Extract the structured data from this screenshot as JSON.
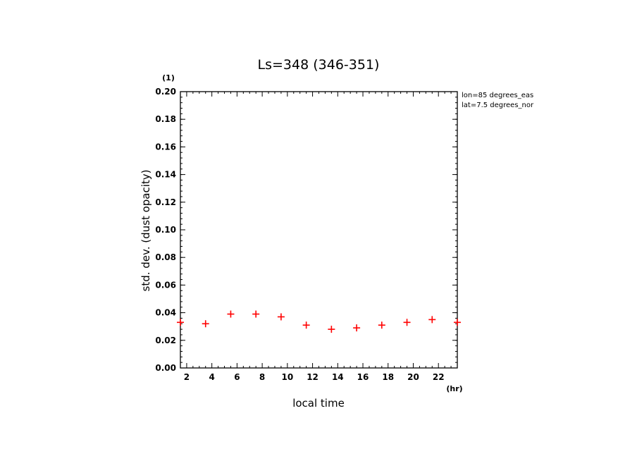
{
  "chart_data": {
    "type": "scatter",
    "title": "Ls=348 (346-351)",
    "xlabel": "local time",
    "ylabel": "std. dev. (dust opacity)",
    "x_unit": "(hr)",
    "y_unit": "(1)",
    "xlim": [
      1.5,
      23.5
    ],
    "ylim": [
      0.0,
      0.2
    ],
    "x_ticks": [
      2,
      4,
      6,
      8,
      10,
      12,
      14,
      16,
      18,
      20,
      22
    ],
    "x_tick_labels": [
      "2",
      "4",
      "6",
      "8",
      "10",
      "12",
      "14",
      "16",
      "18",
      "20",
      "22"
    ],
    "y_ticks": [
      0.0,
      0.02,
      0.04,
      0.06,
      0.08,
      0.1,
      0.12,
      0.14,
      0.16,
      0.18,
      0.2
    ],
    "y_tick_labels": [
      "0.00",
      "0.02",
      "0.04",
      "0.06",
      "0.08",
      "0.10",
      "0.12",
      "0.14",
      "0.16",
      "0.18",
      "0.20"
    ],
    "grid": false,
    "marker": "+",
    "marker_color": "#ff0000",
    "series": [
      {
        "x": [
          1.5,
          3.5,
          5.5,
          7.5,
          9.5,
          11.5,
          13.5,
          15.5,
          17.5,
          19.5,
          21.5,
          23.5
        ],
        "y": [
          0.033,
          0.032,
          0.039,
          0.039,
          0.037,
          0.031,
          0.028,
          0.029,
          0.031,
          0.033,
          0.035,
          0.033
        ]
      }
    ],
    "annotations": [
      "lon=85 degrees_eas",
      "lat=7.5 degrees_nor"
    ]
  }
}
